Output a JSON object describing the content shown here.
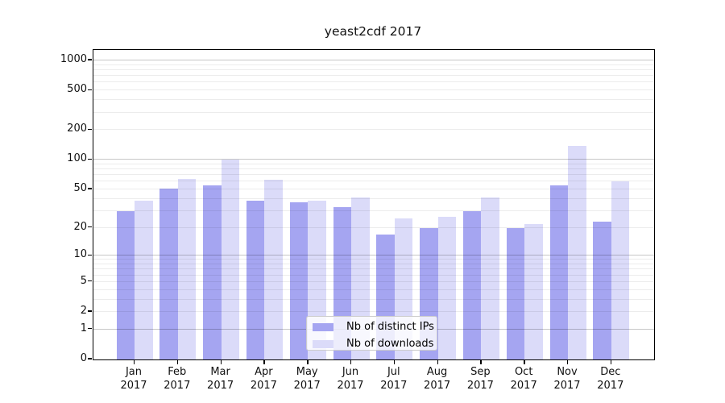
{
  "title": "yeast2cdf 2017",
  "chart_data": {
    "type": "bar",
    "categories": [
      "Jan",
      "Feb",
      "Mar",
      "Apr",
      "May",
      "Jun",
      "Jul",
      "Aug",
      "Sep",
      "Oct",
      "Nov",
      "Dec"
    ],
    "year_label": "2017",
    "series": [
      {
        "name": "Nb of distinct IPs",
        "color": "#a5a5f1",
        "values": [
          30,
          51,
          55,
          38,
          37,
          33,
          17,
          20,
          30,
          20,
          55,
          23
        ]
      },
      {
        "name": "Nb of downloads",
        "color": "#dbdbf9",
        "values": [
          38,
          64,
          100,
          63,
          38,
          41,
          25,
          26,
          41,
          22,
          137,
          60
        ]
      }
    ],
    "yscale": "log1p",
    "yticks": [
      0,
      1,
      2,
      5,
      10,
      20,
      50,
      100,
      200,
      500,
      1000
    ],
    "ylim": [
      0,
      1275
    ],
    "grid": "horizontal",
    "legend_position": "bottom-center"
  }
}
